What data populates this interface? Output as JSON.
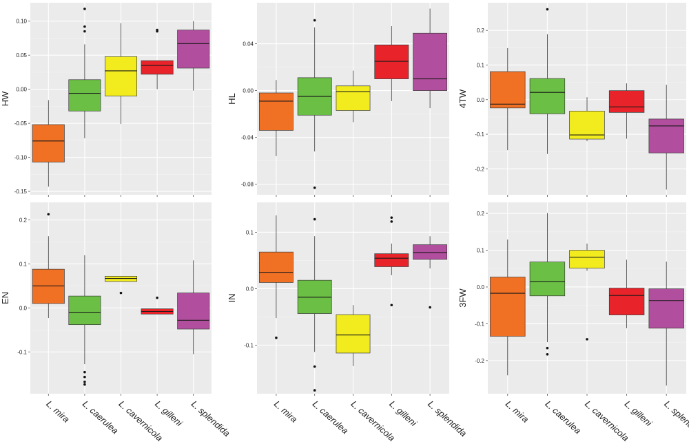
{
  "colors": {
    "panel_bg": "#ebebeb",
    "grid_major": "#ffffff",
    "grid_minor": "#f4f4f4",
    "text": "#222222",
    "whisker": "#333333",
    "species": {
      "L. mira": "#f07024",
      "L. caerulea": "#6abf44",
      "L. cavernicola": "#f2ec1e",
      "L. gilleni": "#e8242a",
      "L. splendida": "#b24e9e"
    }
  },
  "chart_data": [
    {
      "type": "box",
      "ylabel": "HW",
      "categories": [
        "L. mira",
        "L. caerulea",
        "L. cavernicola",
        "L. gilleni",
        "L. splendida"
      ],
      "ylim": [
        -0.155,
        0.127
      ],
      "yticks": [
        0.1,
        0.05,
        0.0,
        -0.05,
        -0.1,
        -0.15
      ],
      "ytick_labels": [
        "0.10",
        "0.05",
        "0.00",
        "-0.05",
        "-0.10",
        "-0.15"
      ],
      "boxes": [
        {
          "min": -0.143,
          "q1": -0.107,
          "median": -0.076,
          "q3": -0.052,
          "max": -0.016,
          "outliers": []
        },
        {
          "min": -0.072,
          "q1": -0.032,
          "median": -0.006,
          "q3": 0.014,
          "max": 0.066,
          "outliers": [
            0.118,
            0.092,
            0.085
          ]
        },
        {
          "min": -0.051,
          "q1": -0.01,
          "median": 0.027,
          "q3": 0.048,
          "max": 0.097,
          "outliers": []
        },
        {
          "min": 0.0,
          "q1": 0.022,
          "median": 0.035,
          "q3": 0.042,
          "max": 0.042,
          "outliers": [
            0.085,
            0.087
          ]
        },
        {
          "min": -0.002,
          "q1": 0.031,
          "median": 0.067,
          "q3": 0.087,
          "max": 0.1,
          "outliers": []
        }
      ]
    },
    {
      "type": "box",
      "ylabel": "HL",
      "categories": [
        "L. mira",
        "L. caerulea",
        "L. cavernicola",
        "L. gilleni",
        "L. splendida"
      ],
      "ylim": [
        -0.089,
        0.075
      ],
      "yticks": [
        0.04,
        0.0,
        -0.04,
        -0.08
      ],
      "ytick_labels": [
        "0.04",
        "0.00",
        "-0.04",
        "-0.08"
      ],
      "boxes": [
        {
          "min": -0.056,
          "q1": -0.034,
          "median": -0.009,
          "q3": -0.002,
          "max": 0.009,
          "outliers": []
        },
        {
          "min": -0.052,
          "q1": -0.021,
          "median": -0.005,
          "q3": 0.011,
          "max": 0.054,
          "outliers": [
            0.06,
            -0.083
          ]
        },
        {
          "min": -0.027,
          "q1": -0.017,
          "median": -0.001,
          "q3": 0.004,
          "max": 0.017,
          "outliers": []
        },
        {
          "min": -0.009,
          "q1": 0.01,
          "median": 0.025,
          "q3": 0.039,
          "max": 0.055,
          "outliers": []
        },
        {
          "min": -0.015,
          "q1": 0.0,
          "median": 0.01,
          "q3": 0.049,
          "max": 0.07,
          "outliers": []
        }
      ]
    },
    {
      "type": "box",
      "ylabel": "4TW",
      "categories": [
        "L. mira",
        "L. caerulea",
        "L. cavernicola",
        "L. gilleni",
        "L. splendida"
      ],
      "ylim": [
        -0.275,
        0.28
      ],
      "yticks": [
        0.2,
        0.1,
        0.0,
        -0.1,
        -0.2
      ],
      "ytick_labels": [
        "0.2",
        "0.1",
        "0.0",
        "-0.1",
        "-0.2"
      ],
      "boxes": [
        {
          "min": -0.146,
          "q1": -0.024,
          "median": -0.013,
          "q3": 0.081,
          "max": 0.149,
          "outliers": []
        },
        {
          "min": -0.157,
          "q1": -0.041,
          "median": 0.021,
          "q3": 0.061,
          "max": 0.189,
          "outliers": [
            0.261
          ]
        },
        {
          "min": -0.12,
          "q1": -0.114,
          "median": -0.102,
          "q3": -0.033,
          "max": 0.007,
          "outliers": []
        },
        {
          "min": -0.113,
          "q1": -0.037,
          "median": -0.021,
          "q3": 0.026,
          "max": 0.047,
          "outliers": []
        },
        {
          "min": -0.26,
          "q1": -0.154,
          "median": -0.076,
          "q3": -0.056,
          "max": 0.043,
          "outliers": []
        }
      ]
    },
    {
      "type": "box",
      "ylabel": "EN",
      "categories": [
        "L. mira",
        "L. caerulea",
        "L. cavernicola",
        "L. gilleni",
        "L. splendida"
      ],
      "ylim": [
        -0.195,
        0.24
      ],
      "yticks": [
        0.2,
        0.1,
        0.0,
        -0.1
      ],
      "ytick_labels": [
        "0.2",
        "0.1",
        "0.0",
        "-0.1"
      ],
      "boxes": [
        {
          "min": -0.023,
          "q1": 0.01,
          "median": 0.05,
          "q3": 0.088,
          "max": 0.163,
          "outliers": [
            0.213
          ]
        },
        {
          "min": -0.128,
          "q1": -0.038,
          "median": -0.011,
          "q3": 0.027,
          "max": 0.12,
          "outliers": [
            -0.146,
            -0.157,
            -0.168,
            -0.174
          ]
        },
        {
          "min": 0.06,
          "q1": 0.06,
          "median": 0.067,
          "q3": 0.072,
          "max": 0.072,
          "outliers": [
            0.034
          ]
        },
        {
          "min": -0.014,
          "q1": -0.014,
          "median": -0.008,
          "q3": -0.002,
          "max": -0.002,
          "outliers": [
            0.023
          ]
        },
        {
          "min": -0.105,
          "q1": -0.048,
          "median": -0.028,
          "q3": 0.034,
          "max": 0.108,
          "outliers": []
        }
      ]
    },
    {
      "type": "box",
      "ylabel": "IN",
      "categories": [
        "L. mira",
        "L. caerulea",
        "L. cavernicola",
        "L. gilleni",
        "L. splendida"
      ],
      "ylim": [
        -0.186,
        0.153
      ],
      "yticks": [
        0.1,
        0.0,
        -0.1
      ],
      "ytick_labels": [
        "0.1",
        "0.0",
        "-0.1"
      ],
      "boxes": [
        {
          "min": -0.052,
          "q1": 0.011,
          "median": 0.029,
          "q3": 0.065,
          "max": 0.13,
          "outliers": [
            -0.087
          ]
        },
        {
          "min": -0.112,
          "q1": -0.044,
          "median": -0.015,
          "q3": 0.015,
          "max": 0.093,
          "outliers": [
            0.123,
            -0.138,
            -0.18
          ]
        },
        {
          "min": -0.137,
          "q1": -0.114,
          "median": -0.082,
          "q3": -0.046,
          "max": -0.029,
          "outliers": []
        },
        {
          "min": 0.024,
          "q1": 0.039,
          "median": 0.054,
          "q3": 0.062,
          "max": 0.08,
          "outliers": [
            0.126,
            0.119,
            -0.029
          ]
        },
        {
          "min": 0.036,
          "q1": 0.052,
          "median": 0.064,
          "q3": 0.078,
          "max": 0.093,
          "outliers": [
            -0.033
          ]
        }
      ]
    },
    {
      "type": "box",
      "ylabel": "3FW",
      "categories": [
        "L. mira",
        "L. caerulea",
        "L. cavernicola",
        "L. gilleni",
        "L. splendida"
      ],
      "ylim": [
        -0.29,
        0.23
      ],
      "yticks": [
        0.2,
        0.1,
        0.0,
        -0.1,
        -0.2
      ],
      "ytick_labels": [
        "0.2",
        "0.1",
        "0.0",
        "-0.1",
        "-0.2"
      ],
      "boxes": [
        {
          "min": -0.24,
          "q1": -0.134,
          "median": -0.017,
          "q3": 0.027,
          "max": 0.129,
          "outliers": []
        },
        {
          "min": -0.15,
          "q1": -0.024,
          "median": 0.014,
          "q3": 0.068,
          "max": 0.201,
          "outliers": [
            -0.166,
            -0.183
          ]
        },
        {
          "min": 0.044,
          "q1": 0.051,
          "median": 0.081,
          "q3": 0.1,
          "max": 0.118,
          "outliers": [
            -0.142
          ]
        },
        {
          "min": -0.112,
          "q1": -0.076,
          "median": -0.023,
          "q3": -0.003,
          "max": 0.074,
          "outliers": []
        },
        {
          "min": -0.268,
          "q1": -0.112,
          "median": -0.037,
          "q3": -0.005,
          "max": 0.069,
          "outliers": []
        }
      ]
    }
  ]
}
